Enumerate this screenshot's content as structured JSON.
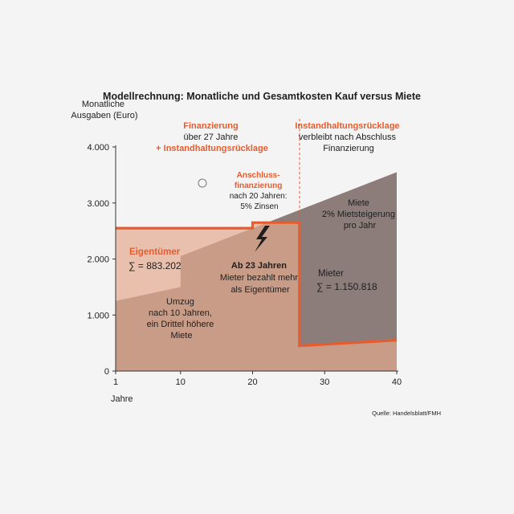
{
  "chart_data": {
    "type": "area",
    "title": "Modellrechnung: Monatliche und Gesamtkosten Kauf versus Miete",
    "ylabel_lines": [
      "Monatliche",
      "Ausgaben (Euro)"
    ],
    "xlabel": "Jahre",
    "xlim": [
      1,
      40
    ],
    "ylim": [
      0,
      4000
    ],
    "x_ticks": [
      1,
      10,
      20,
      30,
      40
    ],
    "y_ticks": [
      0,
      1000,
      2000,
      3000,
      4000
    ],
    "y_tick_labels": [
      "0",
      "1.000",
      "2.000",
      "3.000",
      "4.000"
    ],
    "grid": false,
    "series": [
      {
        "name": "Miete",
        "color": "#8c7d7b",
        "x": [
          1,
          10,
          10,
          40
        ],
        "y": [
          1250,
          1500,
          2050,
          3550
        ]
      },
      {
        "name": "Eigentümer",
        "color": "#e65c2e",
        "x": [
          1,
          20,
          20,
          26.5,
          26.5,
          40
        ],
        "y": [
          2550,
          2550,
          2650,
          2650,
          450,
          550
        ]
      }
    ],
    "annotations": {
      "financing_lines": [
        "Finanzierung",
        "über 27 Jahre",
        "+ Instandhaltungsrücklage"
      ],
      "reserve_lines": [
        "Instandhaltungsrücklage",
        "verbleibt nach Abschluss",
        "Finanzierung"
      ],
      "refinance_lines": [
        "Anschluss-",
        "finanzierung",
        "nach 20 Jahren:",
        "5% Zinsen"
      ],
      "rent_lines": [
        "Miete",
        "2% Mietsteigerung",
        "pro Jahr"
      ],
      "owner_label": "Eigentümer",
      "owner_total": "∑ = 883.202",
      "crossover_lines": [
        "Ab 23 Jahren",
        "Mieter bezahlt mehr",
        "als Eigentümer"
      ],
      "renter_label": "Mieter",
      "renter_total": "∑ = 1.150.818",
      "move_lines": [
        "Umzug",
        "nach 10 Jahren,",
        "ein Drittel höhere",
        "Miete"
      ]
    },
    "source": "Quelle: Handelsblatt/FMH"
  }
}
